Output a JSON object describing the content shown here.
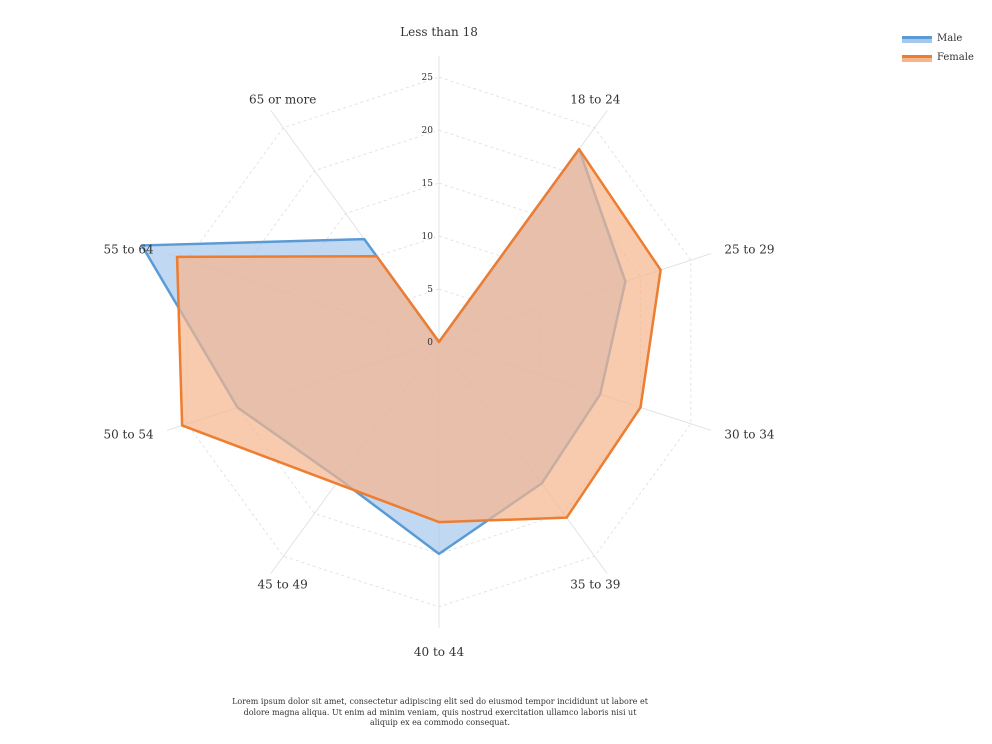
{
  "chart_data": {
    "type": "radar",
    "categories": [
      "Less than 18",
      "18 to 24",
      "25 to 29",
      "30 to 34",
      "35 to 39",
      "40 to 44",
      "45 to 49",
      "50 to 54",
      "55 to 64",
      "65 or more"
    ],
    "series": [
      {
        "name": "Male",
        "values": [
          0,
          22.5,
          18.5,
          16,
          16.5,
          20,
          16,
          20,
          29.5,
          12
        ]
      },
      {
        "name": "Female",
        "values": [
          0,
          22.5,
          22,
          20,
          20.5,
          17,
          16.5,
          25.5,
          26,
          10
        ]
      }
    ],
    "radial_ticks": [
      "0",
      "5",
      "10",
      "15",
      "20",
      "25"
    ],
    "rmax": 27,
    "grid": true,
    "legend_position": "top-right",
    "colors": {
      "Male": {
        "line": "#5b9bd5",
        "fill": "#a6c8ec"
      },
      "Female": {
        "line": "#ed7d31",
        "fill": "#f7b58b"
      },
      "axis": "#dddddd",
      "grid": "#dddddd",
      "text": "#333333"
    }
  },
  "footnote": "Lorem ipsum dolor sit amet, consectetur adipiscing elit sed do eiusmod tempor incididunt ut labore et dolore magna aliqua. Ut enim ad minim veniam, quis nostrud exercitation ullamco laboris nisi ut aliquip ex ea commodo consequat."
}
